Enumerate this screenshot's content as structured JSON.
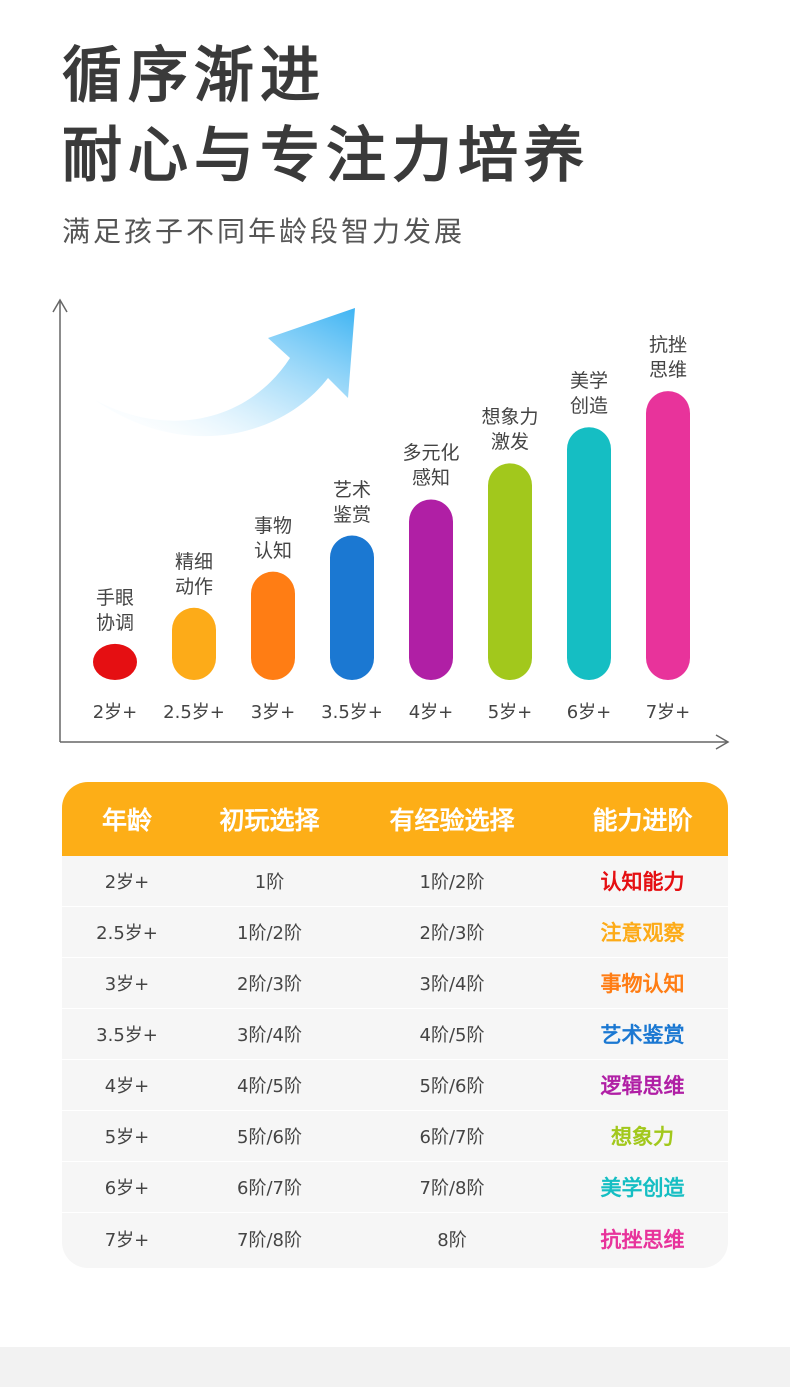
{
  "header": {
    "title_line1": "循序渐进",
    "title_line2": "耐心与专注力培养",
    "subtitle": "满足孩子不同年龄段智力发展"
  },
  "chart_data": {
    "type": "bar",
    "title": "",
    "xlabel": "",
    "ylabel": "",
    "categories": [
      "2岁+",
      "2.5岁+",
      "3岁+",
      "3.5岁+",
      "4岁+",
      "5岁+",
      "6岁+",
      "7岁+"
    ],
    "values": [
      1,
      2,
      3,
      4,
      5,
      6,
      7,
      8
    ],
    "bar_labels": [
      "手眼\n协调",
      "精细\n动作",
      "事物\n认知",
      "艺术\n鉴赏",
      "多元化\n感知",
      "想象力\n激发",
      "美学\n创造",
      "抗挫\n思维"
    ],
    "colors": [
      "#e50f12",
      "#fdab18",
      "#ff7d14",
      "#1b78d2",
      "#b01fa5",
      "#a2c81c",
      "#15bec3",
      "#e8339b"
    ],
    "ylim": [
      0,
      9
    ],
    "grid": false,
    "axis_color": "#666666",
    "arrow_decoration": "trend-arrow-icon"
  },
  "table": {
    "headers": [
      "年龄",
      "初玩选择",
      "有经验选择",
      "能力进阶"
    ],
    "header_color": "#fdae17",
    "rows": [
      {
        "age": "2岁+",
        "beginner": "1阶",
        "experienced": "1阶/2阶",
        "ability": "认知能力",
        "color": "#e50f12"
      },
      {
        "age": "2.5岁+",
        "beginner": "1阶/2阶",
        "experienced": "2阶/3阶",
        "ability": "注意观察",
        "color": "#fdab18"
      },
      {
        "age": "3岁+",
        "beginner": "2阶/3阶",
        "experienced": "3阶/4阶",
        "ability": "事物认知",
        "color": "#ff7d14"
      },
      {
        "age": "3.5岁+",
        "beginner": "3阶/4阶",
        "experienced": "4阶/5阶",
        "ability": "艺术鉴赏",
        "color": "#1b78d2"
      },
      {
        "age": "4岁+",
        "beginner": "4阶/5阶",
        "experienced": "5阶/6阶",
        "ability": "逻辑思维",
        "color": "#b01fa5"
      },
      {
        "age": "5岁+",
        "beginner": "5阶/6阶",
        "experienced": "6阶/7阶",
        "ability": "想象力",
        "color": "#a2c81c"
      },
      {
        "age": "6岁+",
        "beginner": "6阶/7阶",
        "experienced": "7阶/8阶",
        "ability": "美学创造",
        "color": "#15bec3"
      },
      {
        "age": "7岁+",
        "beginner": "7阶/8阶",
        "experienced": "8阶",
        "ability": "抗挫思维",
        "color": "#e8339b"
      }
    ]
  }
}
